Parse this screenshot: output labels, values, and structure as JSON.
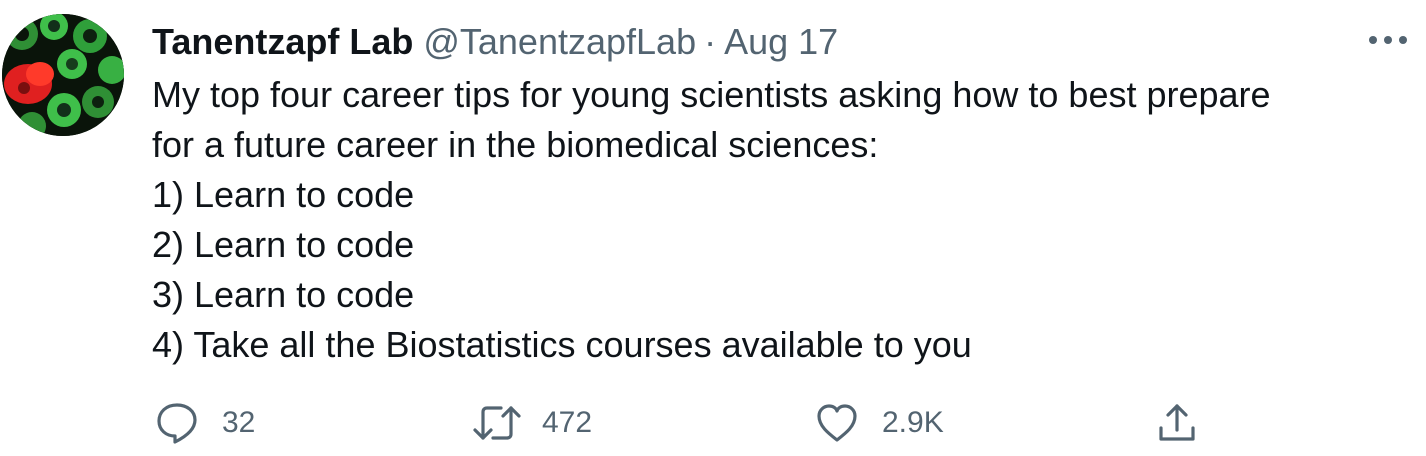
{
  "tweet": {
    "author_name": "Tanentzapf Lab",
    "author_handle": "@TanentzapfLab",
    "separator": "·",
    "date": "Aug 17",
    "more_icon": "more-horizontal-icon",
    "lines": [
      "My top four career tips for young scientists asking how to best prepare",
      "for a future career in the biomedical sciences:",
      "1) Learn to code",
      "2) Learn to code",
      "3) Learn to code",
      "4) Take all the Biostatistics courses available to you"
    ],
    "actions": {
      "reply": {
        "icon": "reply-icon",
        "count": "32"
      },
      "retweet": {
        "icon": "retweet-icon",
        "count": "472"
      },
      "like": {
        "icon": "heart-icon",
        "count": "2.9K"
      },
      "share": {
        "icon": "share-icon"
      }
    }
  },
  "colors": {
    "text_primary": "#0f1419",
    "text_secondary": "#536471",
    "avatar_green": "#3fbf4a",
    "avatar_red": "#e02020"
  }
}
